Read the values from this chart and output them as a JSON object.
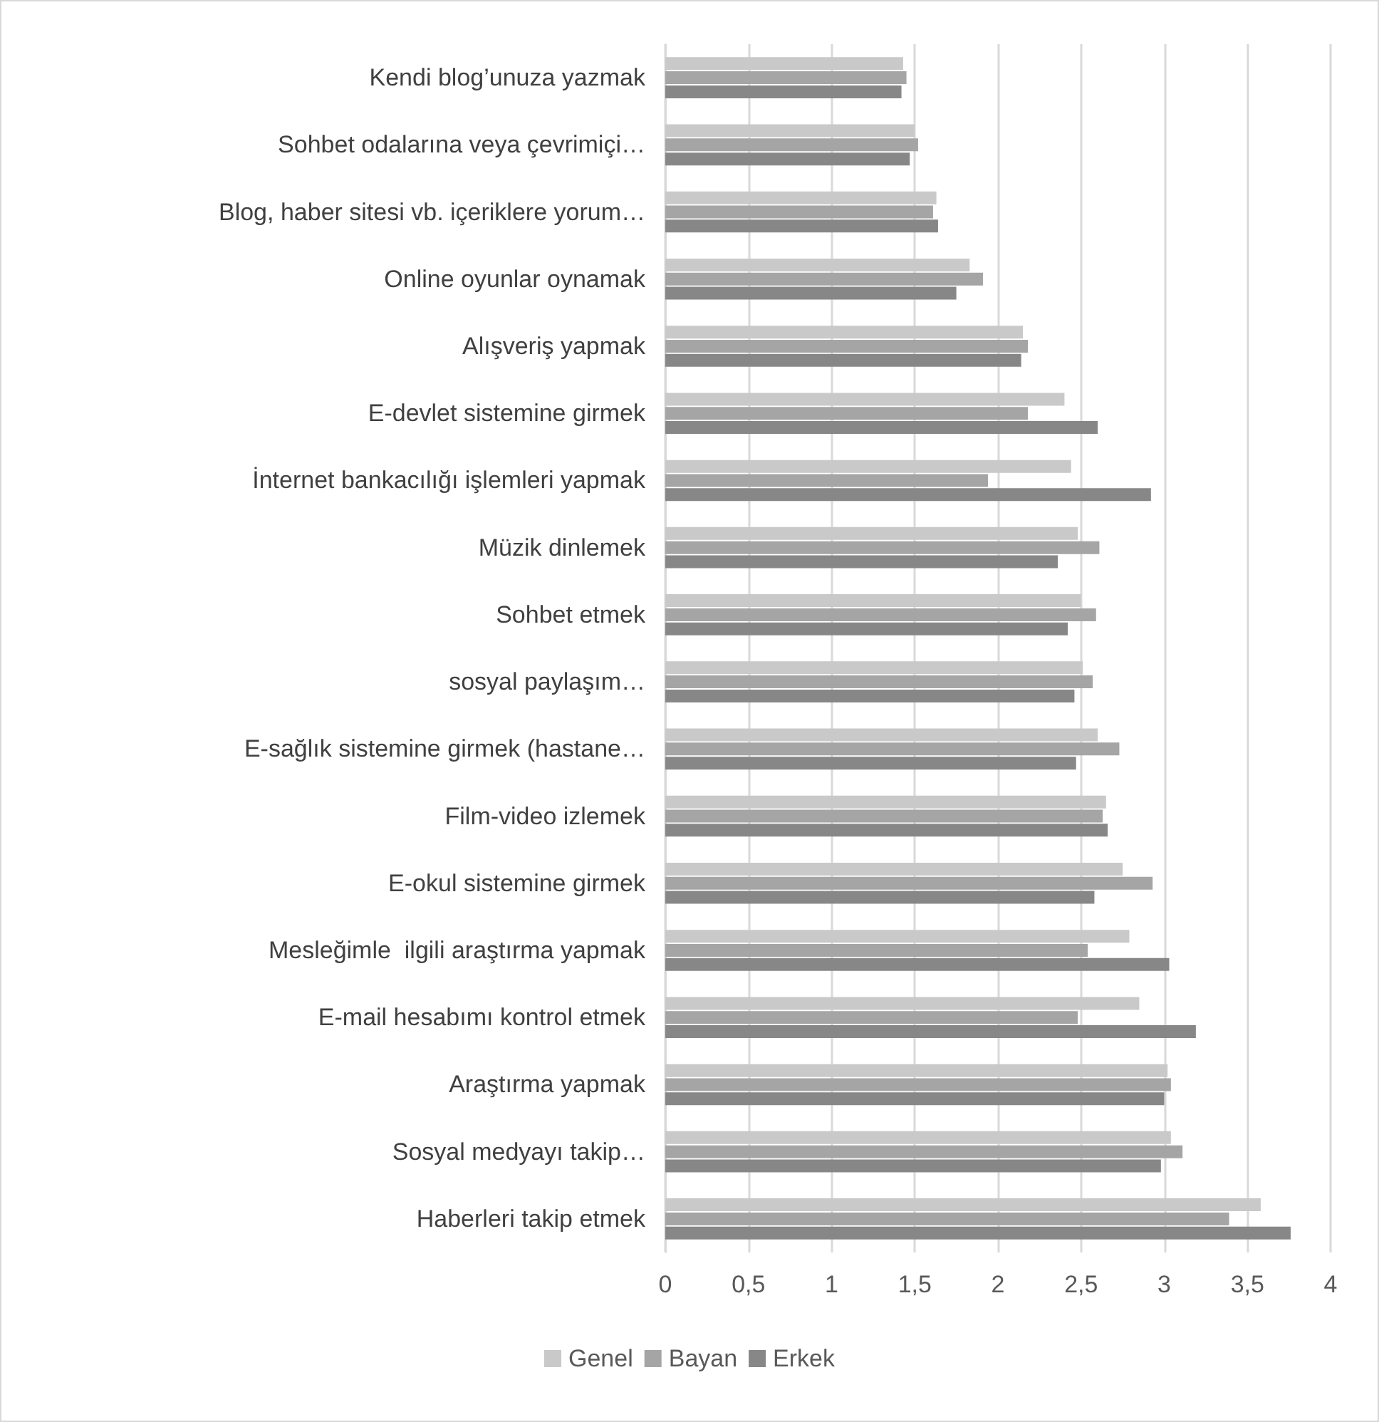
{
  "chart_data": {
    "type": "bar",
    "orientation": "horizontal",
    "categories": [
      "Kendi blog’unuza yazmak",
      "Sohbet odalarına veya çevrimiçi…",
      "Blog, haber sitesi vb. içeriklere yorum…",
      "Online oyunlar oynamak",
      "Alışveriş yapmak",
      "E-devlet sistemine girmek",
      "İnternet bankacılığı işlemleri yapmak",
      "Müzik dinlemek",
      "Sohbet etmek",
      "sosyal paylaşım…",
      "E-sağlık sistemine girmek (hastane…",
      "Film-video izlemek",
      "E-okul sistemine girmek",
      "Mesleğimle  ilgili araştırma yapmak",
      "E-mail hesabımı kontrol etmek",
      "Araştırma yapmak",
      "Sosyal medyayı takip…",
      "Haberleri takip etmek"
    ],
    "series": [
      {
        "name": "Genel",
        "color": "#c9c9c9",
        "values": [
          1.43,
          1.5,
          1.63,
          1.83,
          2.15,
          2.4,
          2.44,
          2.48,
          2.5,
          2.51,
          2.6,
          2.65,
          2.75,
          2.79,
          2.85,
          3.02,
          3.04,
          3.58
        ]
      },
      {
        "name": "Bayan",
        "color": "#a5a5a5",
        "values": [
          1.45,
          1.52,
          1.61,
          1.91,
          2.18,
          2.18,
          1.94,
          2.61,
          2.59,
          2.57,
          2.73,
          2.63,
          2.93,
          2.54,
          2.48,
          3.04,
          3.11,
          3.39
        ]
      },
      {
        "name": "Erkek",
        "color": "#878787",
        "values": [
          1.42,
          1.47,
          1.64,
          1.75,
          2.14,
          2.6,
          2.92,
          2.36,
          2.42,
          2.46,
          2.47,
          2.66,
          2.58,
          3.03,
          3.19,
          3,
          2.98,
          3.76
        ]
      }
    ],
    "xlim": [
      0,
      4
    ],
    "xticks": [
      0,
      {
        "value": 0.5,
        "label": "0,5"
      },
      1,
      {
        "value": 1.5,
        "label": "1,5"
      },
      2,
      {
        "value": 2.5,
        "label": "2,5"
      },
      3,
      {
        "value": 3.5,
        "label": "3,5"
      },
      4
    ],
    "grid": "x",
    "legend": "bottom"
  }
}
